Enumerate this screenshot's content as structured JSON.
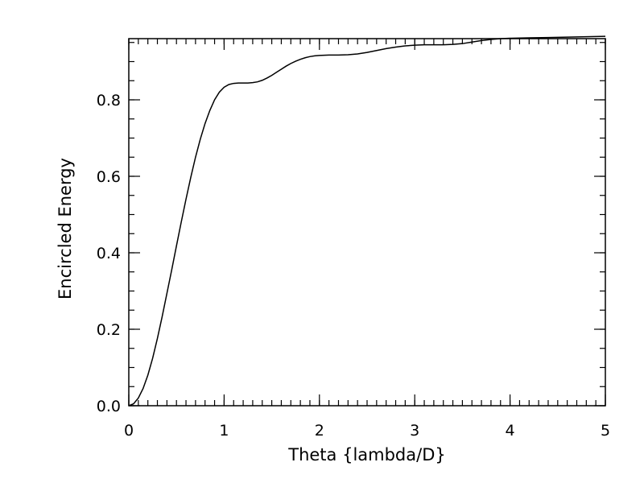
{
  "chart_data": {
    "type": "line",
    "title": "",
    "xlabel": "Theta {lambda/D}",
    "ylabel": "Encircled Energy",
    "xlim": [
      0,
      5
    ],
    "ylim": [
      0,
      0.96
    ],
    "x_ticks": [
      0,
      1,
      2,
      3,
      4,
      5
    ],
    "x_tick_labels": [
      "0",
      "1",
      "2",
      "3",
      "4",
      "5"
    ],
    "y_ticks": [
      0,
      0.2,
      0.4,
      0.6,
      0.8
    ],
    "y_tick_labels": [
      "0.0",
      "0.2",
      "0.4",
      "0.6",
      "0.8"
    ],
    "x_minor_per_major": 10,
    "y_minor_per_major": 4,
    "grid": false,
    "line_color": "#000000",
    "series": [
      {
        "x": [
          0.0,
          0.05,
          0.1,
          0.15,
          0.2,
          0.25,
          0.3,
          0.35,
          0.4,
          0.45,
          0.5,
          0.55,
          0.6,
          0.65,
          0.7,
          0.75,
          0.8,
          0.85,
          0.9,
          0.95,
          1.0,
          1.05,
          1.1,
          1.15,
          1.2,
          1.25,
          1.3,
          1.35,
          1.4,
          1.45,
          1.5,
          1.55,
          1.6,
          1.65,
          1.7,
          1.75,
          1.8,
          1.85,
          1.9,
          1.95,
          2.0,
          2.1,
          2.2,
          2.3,
          2.4,
          2.5,
          2.6,
          2.7,
          2.8,
          2.9,
          3.0,
          3.1,
          3.2,
          3.3,
          3.4,
          3.5,
          3.6,
          3.7,
          3.8,
          3.9,
          4.0,
          4.2,
          4.4,
          4.6,
          4.8,
          5.0
        ],
        "y": [
          0.0,
          0.005,
          0.02,
          0.045,
          0.08,
          0.124,
          0.176,
          0.233,
          0.294,
          0.355,
          0.418,
          0.48,
          0.54,
          0.597,
          0.65,
          0.697,
          0.738,
          0.772,
          0.8,
          0.82,
          0.833,
          0.84,
          0.843,
          0.844,
          0.844,
          0.844,
          0.845,
          0.847,
          0.851,
          0.857,
          0.864,
          0.872,
          0.88,
          0.888,
          0.895,
          0.901,
          0.906,
          0.91,
          0.913,
          0.915,
          0.916,
          0.917,
          0.917,
          0.918,
          0.92,
          0.924,
          0.929,
          0.934,
          0.938,
          0.941,
          0.943,
          0.944,
          0.944,
          0.944,
          0.945,
          0.947,
          0.951,
          0.955,
          0.958,
          0.96,
          0.961,
          0.962,
          0.963,
          0.964,
          0.965,
          0.966
        ]
      }
    ]
  }
}
